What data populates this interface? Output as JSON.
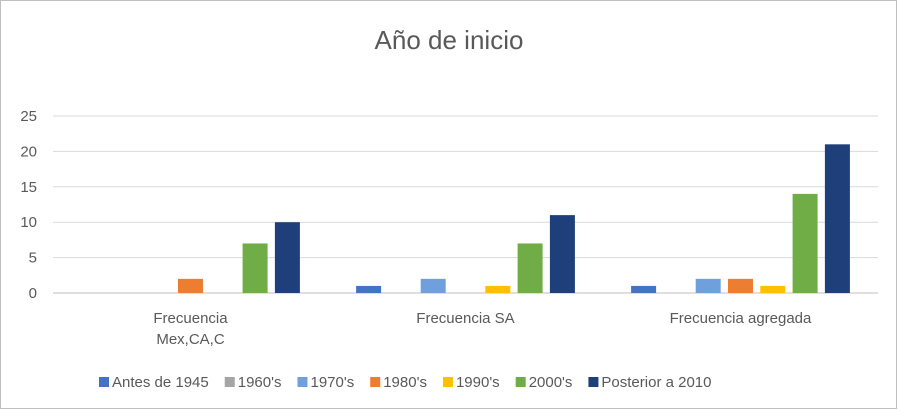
{
  "chart_data": {
    "type": "bar",
    "title": "Año de inicio",
    "xlabel": "",
    "ylabel": "",
    "ylim": [
      0,
      25
    ],
    "yticks": [
      0,
      5,
      10,
      15,
      20,
      25
    ],
    "grid": true,
    "legend_position": "bottom",
    "categories": [
      [
        "Frecuencia",
        "Mex,CA,C"
      ],
      [
        "Frecuencia SA"
      ],
      [
        "Frecuencia agregada"
      ]
    ],
    "series": [
      {
        "name": "Antes de 1945",
        "color": "#4472c4",
        "values": [
          0,
          1,
          1
        ]
      },
      {
        "name": "1960's",
        "color": "#a5a5a5",
        "values": [
          0,
          0,
          0
        ]
      },
      {
        "name": "1970's",
        "color": "#70a0dc",
        "values": [
          0,
          2,
          2
        ]
      },
      {
        "name": "1980's",
        "color": "#ed7d31",
        "values": [
          2,
          0,
          2
        ]
      },
      {
        "name": "1990's",
        "color": "#ffc000",
        "values": [
          0,
          1,
          1
        ]
      },
      {
        "name": "2000's",
        "color": "#70ad47",
        "values": [
          7,
          7,
          14
        ]
      },
      {
        "name": "Posterior a 2010",
        "color": "#1f3f7a",
        "values": [
          10,
          11,
          21
        ]
      }
    ]
  }
}
